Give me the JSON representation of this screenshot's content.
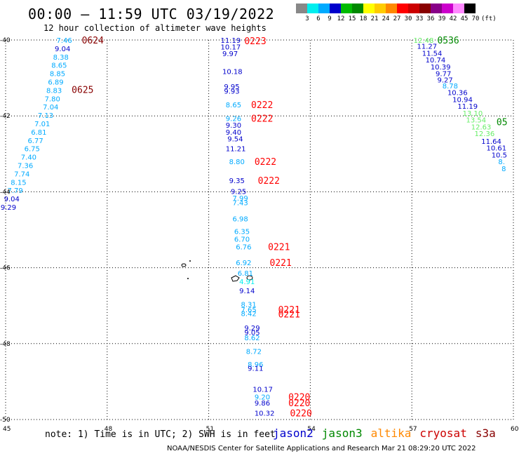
{
  "title": "00:00 – 11:59 UTC 03/19/2022",
  "subtitle": "12 hour collection of altimeter wave heights",
  "colorbar": {
    "colors": [
      "#888888",
      "#00eeee",
      "#00aaff",
      "#0000cc",
      "#00bb00",
      "#008800",
      "#ffff00",
      "#ffcc00",
      "#ff8800",
      "#ff0000",
      "#cc0000",
      "#880000",
      "#880088",
      "#cc00cc",
      "#ff88ff",
      "#000000"
    ],
    "labels": [
      "3",
      "6",
      "9",
      "12",
      "15",
      "18",
      "21",
      "24",
      "27",
      "30",
      "33",
      "36",
      "39",
      "42",
      "45",
      "70",
      "(ft)"
    ]
  },
  "axes": {
    "lon_ticks": [
      "45",
      "48",
      "51",
      "54",
      "57",
      "60"
    ],
    "lat_ticks": [
      "40",
      "42",
      "44",
      "46",
      "48",
      "50"
    ]
  },
  "tracks": [
    {
      "name": "track-west",
      "tag": {
        "text": "0624",
        "lon": 47.5,
        "lat": 40.0,
        "color": "#880000"
      },
      "tag2": {
        "text": "0625",
        "lon": 47.2,
        "lat": 41.3,
        "color": "#880000"
      },
      "points": [
        {
          "v": "7.46",
          "lon": 46.75,
          "lat": 40.0,
          "c": "#00aaff"
        },
        {
          "v": "9.04",
          "lon": 46.7,
          "lat": 40.22,
          "c": "#0000cc"
        },
        {
          "v": "8.38",
          "lon": 46.65,
          "lat": 40.44,
          "c": "#00aaff"
        },
        {
          "v": "8.65",
          "lon": 46.6,
          "lat": 40.66,
          "c": "#00aaff"
        },
        {
          "v": "8.85",
          "lon": 46.55,
          "lat": 40.88,
          "c": "#00aaff"
        },
        {
          "v": "6.89",
          "lon": 46.5,
          "lat": 41.1,
          "c": "#00aaff"
        },
        {
          "v": "8.83",
          "lon": 46.45,
          "lat": 41.32,
          "c": "#00aaff"
        },
        {
          "v": "7.80",
          "lon": 46.4,
          "lat": 41.54,
          "c": "#00aaff"
        },
        {
          "v": "7.04",
          "lon": 46.35,
          "lat": 41.76,
          "c": "#00aaff"
        },
        {
          "v": "7.13",
          "lon": 46.2,
          "lat": 41.98,
          "c": "#00aaff"
        },
        {
          "v": "7.01",
          "lon": 46.1,
          "lat": 42.2,
          "c": "#00aaff"
        },
        {
          "v": "6.81",
          "lon": 46.0,
          "lat": 42.42,
          "c": "#00aaff"
        },
        {
          "v": "6.77",
          "lon": 45.9,
          "lat": 42.64,
          "c": "#00aaff"
        },
        {
          "v": "6.75",
          "lon": 45.8,
          "lat": 42.86,
          "c": "#00aaff"
        },
        {
          "v": "7.40",
          "lon": 45.7,
          "lat": 43.08,
          "c": "#00aaff"
        },
        {
          "v": "7.36",
          "lon": 45.6,
          "lat": 43.3,
          "c": "#00aaff"
        },
        {
          "v": "7.74",
          "lon": 45.5,
          "lat": 43.52,
          "c": "#00aaff"
        },
        {
          "v": "8.15",
          "lon": 45.4,
          "lat": 43.74,
          "c": "#00aaff"
        },
        {
          "v": "7.79",
          "lon": 45.3,
          "lat": 43.96,
          "c": "#00aaff"
        },
        {
          "v": "9.04",
          "lon": 45.2,
          "lat": 44.18,
          "c": "#0000cc"
        },
        {
          "v": "9.29",
          "lon": 45.1,
          "lat": 44.4,
          "c": "#0000cc"
        }
      ]
    },
    {
      "name": "track-middle",
      "points": [
        {
          "v": "11.19",
          "lon": 51.6,
          "lat": 40.0,
          "c": "#0000cc"
        },
        {
          "v": "10.17",
          "lon": 51.6,
          "lat": 40.18,
          "c": "#0000cc"
        },
        {
          "v": "9.97",
          "lon": 51.65,
          "lat": 40.35,
          "c": "#0000cc"
        },
        {
          "v": "10.18",
          "lon": 51.65,
          "lat": 40.82,
          "c": "#0000cc"
        },
        {
          "v": "9.95",
          "lon": 51.7,
          "lat": 41.22,
          "c": "#0000cc"
        },
        {
          "v": "9.93",
          "lon": 51.7,
          "lat": 41.34,
          "c": "#0000cc"
        },
        {
          "v": "8.65",
          "lon": 51.75,
          "lat": 41.7,
          "c": "#00aaff"
        },
        {
          "v": "9.26",
          "lon": 51.75,
          "lat": 42.06,
          "c": "#00aaff"
        },
        {
          "v": "9.30",
          "lon": 51.75,
          "lat": 42.24,
          "c": "#0000cc"
        },
        {
          "v": "9.40",
          "lon": 51.75,
          "lat": 42.42,
          "c": "#0000cc"
        },
        {
          "v": "9.54",
          "lon": 51.8,
          "lat": 42.6,
          "c": "#0000cc"
        },
        {
          "v": "11.21",
          "lon": 51.75,
          "lat": 42.86,
          "c": "#0000cc"
        },
        {
          "v": "8.80",
          "lon": 51.85,
          "lat": 43.2,
          "c": "#00aaff"
        },
        {
          "v": "9.35",
          "lon": 51.85,
          "lat": 43.7,
          "c": "#0000cc"
        },
        {
          "v": "9.25",
          "lon": 51.9,
          "lat": 43.98,
          "c": "#0000cc"
        },
        {
          "v": "7.99",
          "lon": 51.95,
          "lat": 44.16,
          "c": "#00aaff"
        },
        {
          "v": "7.43",
          "lon": 51.95,
          "lat": 44.28,
          "c": "#00aaff"
        },
        {
          "v": "6.98",
          "lon": 51.95,
          "lat": 44.7,
          "c": "#00aaff"
        },
        {
          "v": "6.35",
          "lon": 52.0,
          "lat": 45.04,
          "c": "#00aaff"
        },
        {
          "v": "6.70",
          "lon": 52.0,
          "lat": 45.24,
          "c": "#00aaff"
        },
        {
          "v": "6.76",
          "lon": 52.05,
          "lat": 45.44,
          "c": "#00aaff"
        },
        {
          "v": "6.92",
          "lon": 52.05,
          "lat": 45.86,
          "c": "#00aaff"
        },
        {
          "v": "6.81",
          "lon": 52.1,
          "lat": 46.14,
          "c": "#00aaff"
        },
        {
          "v": "4.91",
          "lon": 52.15,
          "lat": 46.36,
          "c": "#00eeee"
        },
        {
          "v": "9.14",
          "lon": 52.15,
          "lat": 46.6,
          "c": "#0000cc"
        },
        {
          "v": "8.31",
          "lon": 52.2,
          "lat": 46.96,
          "c": "#00aaff"
        },
        {
          "v": "7.65",
          "lon": 52.2,
          "lat": 47.1,
          "c": "#00aaff"
        },
        {
          "v": "8.42",
          "lon": 52.2,
          "lat": 47.2,
          "c": "#00aaff"
        },
        {
          "v": "9.29",
          "lon": 52.3,
          "lat": 47.58,
          "c": "#0000cc"
        },
        {
          "v": "9.05",
          "lon": 52.3,
          "lat": 47.7,
          "c": "#0000cc"
        },
        {
          "v": "8.62",
          "lon": 52.3,
          "lat": 47.84,
          "c": "#00aaff"
        },
        {
          "v": "8.72",
          "lon": 52.35,
          "lat": 48.2,
          "c": "#00aaff"
        },
        {
          "v": "8.96",
          "lon": 52.4,
          "lat": 48.54,
          "c": "#00aaff"
        },
        {
          "v": "9.11",
          "lon": 52.4,
          "lat": 48.64,
          "c": "#0000cc"
        },
        {
          "v": "10.17",
          "lon": 52.55,
          "lat": 49.2,
          "c": "#0000cc"
        },
        {
          "v": "9.20",
          "lon": 52.6,
          "lat": 49.4,
          "c": "#00aaff"
        },
        {
          "v": "9.86",
          "lon": 52.6,
          "lat": 49.56,
          "c": "#0000cc"
        },
        {
          "v": "10.32",
          "lon": 52.6,
          "lat": 49.82,
          "c": "#0000cc"
        }
      ],
      "tags": [
        {
          "text": "0223",
          "lon": 52.3,
          "lat": 40.02,
          "color": "#ff0000"
        },
        {
          "text": "0222",
          "lon": 52.5,
          "lat": 41.7,
          "color": "#ff0000"
        },
        {
          "text": "0222",
          "lon": 52.5,
          "lat": 42.06,
          "color": "#ff0000"
        },
        {
          "text": "0222",
          "lon": 52.6,
          "lat": 43.2,
          "color": "#ff0000"
        },
        {
          "text": "0222",
          "lon": 52.7,
          "lat": 43.7,
          "color": "#ff0000"
        },
        {
          "text": "0221",
          "lon": 53.0,
          "lat": 45.44,
          "color": "#ff0000"
        },
        {
          "text": "0221",
          "lon": 53.05,
          "lat": 45.86,
          "color": "#ff0000"
        },
        {
          "text": "0221",
          "lon": 53.3,
          "lat": 47.1,
          "color": "#ff0000"
        },
        {
          "text": "0221",
          "lon": 53.3,
          "lat": 47.22,
          "color": "#ff0000"
        },
        {
          "text": "0220",
          "lon": 53.6,
          "lat": 49.4,
          "color": "#ff0000"
        },
        {
          "text": "0220",
          "lon": 53.6,
          "lat": 49.56,
          "color": "#ff0000"
        },
        {
          "text": "0220",
          "lon": 53.65,
          "lat": 49.82,
          "color": "#ff0000"
        }
      ]
    },
    {
      "name": "track-east",
      "points": [
        {
          "v": "12.48",
          "lon": 57.3,
          "lat": 40.0,
          "c": "#66ee66"
        },
        {
          "v": "11.27",
          "lon": 57.4,
          "lat": 40.16,
          "c": "#0000cc"
        },
        {
          "v": "11.54",
          "lon": 57.55,
          "lat": 40.34,
          "c": "#0000cc"
        },
        {
          "v": "10.74",
          "lon": 57.65,
          "lat": 40.52,
          "c": "#0000cc"
        },
        {
          "v": "10.39",
          "lon": 57.8,
          "lat": 40.7,
          "c": "#0000cc"
        },
        {
          "v": "9.77",
          "lon": 57.95,
          "lat": 40.88,
          "c": "#0000cc"
        },
        {
          "v": "9.27",
          "lon": 58.0,
          "lat": 41.04,
          "c": "#0000cc"
        },
        {
          "v": "8.78",
          "lon": 58.15,
          "lat": 41.2,
          "c": "#00aaff"
        },
        {
          "v": "10.36",
          "lon": 58.3,
          "lat": 41.38,
          "c": "#0000cc"
        },
        {
          "v": "10.94",
          "lon": 58.45,
          "lat": 41.56,
          "c": "#0000cc"
        },
        {
          "v": "11.19",
          "lon": 58.6,
          "lat": 41.74,
          "c": "#0000cc"
        },
        {
          "v": "13.10",
          "lon": 58.75,
          "lat": 41.92,
          "c": "#66ee66"
        },
        {
          "v": "13.54",
          "lon": 58.85,
          "lat": 42.1,
          "c": "#66ee66"
        },
        {
          "v": "12.63",
          "lon": 59.0,
          "lat": 42.28,
          "c": "#66ee66"
        },
        {
          "v": "12.36",
          "lon": 59.1,
          "lat": 42.46,
          "c": "#66ee66"
        },
        {
          "v": "11.64",
          "lon": 59.3,
          "lat": 42.66,
          "c": "#0000cc"
        },
        {
          "v": "10.61",
          "lon": 59.45,
          "lat": 42.84,
          "c": "#0000cc"
        },
        {
          "v": "10.5",
          "lon": 59.6,
          "lat": 43.02,
          "c": "#0000cc"
        },
        {
          "v": "8.",
          "lon": 59.8,
          "lat": 43.2,
          "c": "#00aaff"
        },
        {
          "v": "8",
          "lon": 59.9,
          "lat": 43.38,
          "c": "#00aaff"
        }
      ],
      "tags": [
        {
          "text": "0536",
          "lon": 58.0,
          "lat": 40.0,
          "color": "#008800"
        },
        {
          "text": "05",
          "lon": 59.75,
          "lat": 42.15,
          "color": "#008800"
        }
      ]
    }
  ],
  "footer": {
    "note": "note: 1) Time is in UTC; 2) SWH is in feet",
    "legend": [
      {
        "label": "jason2",
        "color": "#0000cc"
      },
      {
        "label": "jason3",
        "color": "#008800"
      },
      {
        "label": "altika",
        "color": "#ff8800"
      },
      {
        "label": "cryosat",
        "color": "#cc0000"
      },
      {
        "label": "s3a",
        "color": "#880000"
      }
    ],
    "credit": "NOAA/NESDIS Center for Satellite Applications and Research    Mar 21 08:29:20 UTC 2022"
  }
}
